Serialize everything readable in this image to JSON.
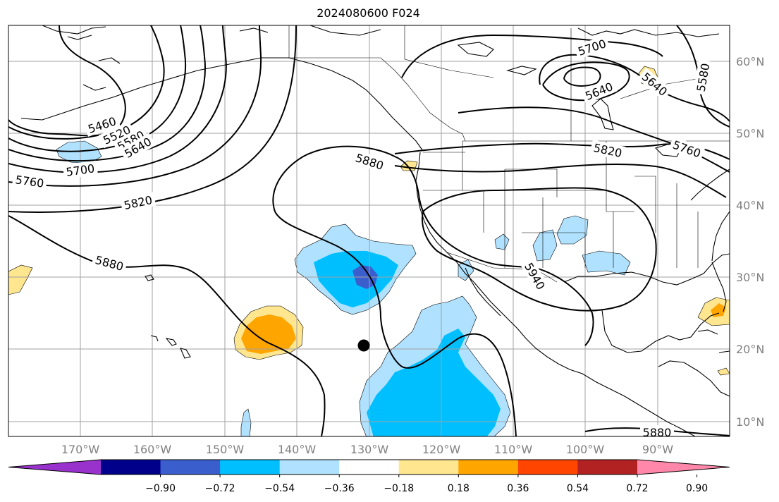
{
  "title": "2024080600 F024",
  "map": {
    "lon_labels": [
      "170°W",
      "160°W",
      "150°W",
      "140°W",
      "130°W",
      "120°W",
      "110°W",
      "100°W",
      "90°W"
    ],
    "lat_labels": [
      "60°N",
      "50°N",
      "40°N",
      "30°N",
      "20°N",
      "10°N"
    ],
    "contour_labels": [
      {
        "text": "5460",
        "rot": -18
      },
      {
        "text": "5520",
        "rot": -25
      },
      {
        "text": "5580",
        "rot": -28
      },
      {
        "text": "5640",
        "rot": -30
      },
      {
        "text": "5700",
        "rot": -8
      },
      {
        "text": "5760",
        "rot": 8
      },
      {
        "text": "5820",
        "rot": -12
      },
      {
        "text": "5880",
        "rot": 15
      },
      {
        "text": "5880",
        "rot": 18
      },
      {
        "text": "5940",
        "rot": 60
      },
      {
        "text": "5820",
        "rot": 12
      },
      {
        "text": "5760",
        "rot": 20
      },
      {
        "text": "5700",
        "rot": -18
      },
      {
        "text": "5640",
        "rot": -22
      },
      {
        "text": "5640",
        "rot": 40
      },
      {
        "text": "5580",
        "rot": -80
      },
      {
        "text": "5880",
        "rot": 0
      }
    ],
    "colors": {
      "contour": "#000000",
      "grid": "#a0a0a0",
      "coast": "#000000",
      "neg_strong": "#3a5fcd",
      "neg_mid": "#00bfff",
      "neg_weak": "#b0e2ff",
      "pos_weak": "#ffe68f",
      "pos_mid": "#ffa500",
      "pos_strong": "#ff4500"
    }
  },
  "colorbar": {
    "ticks": [
      "−0.90",
      "−0.72",
      "−0.54",
      "−0.36",
      "−0.18",
      "0.18",
      "0.36",
      "0.54",
      "0.72",
      "0.90"
    ],
    "colors": [
      "#9932cc",
      "#00008b",
      "#3a5fcd",
      "#00bfff",
      "#b0e2ff",
      "#ffffff",
      "#ffe68f",
      "#ffa500",
      "#ff4500",
      "#b22222",
      "#ff88aa"
    ]
  }
}
